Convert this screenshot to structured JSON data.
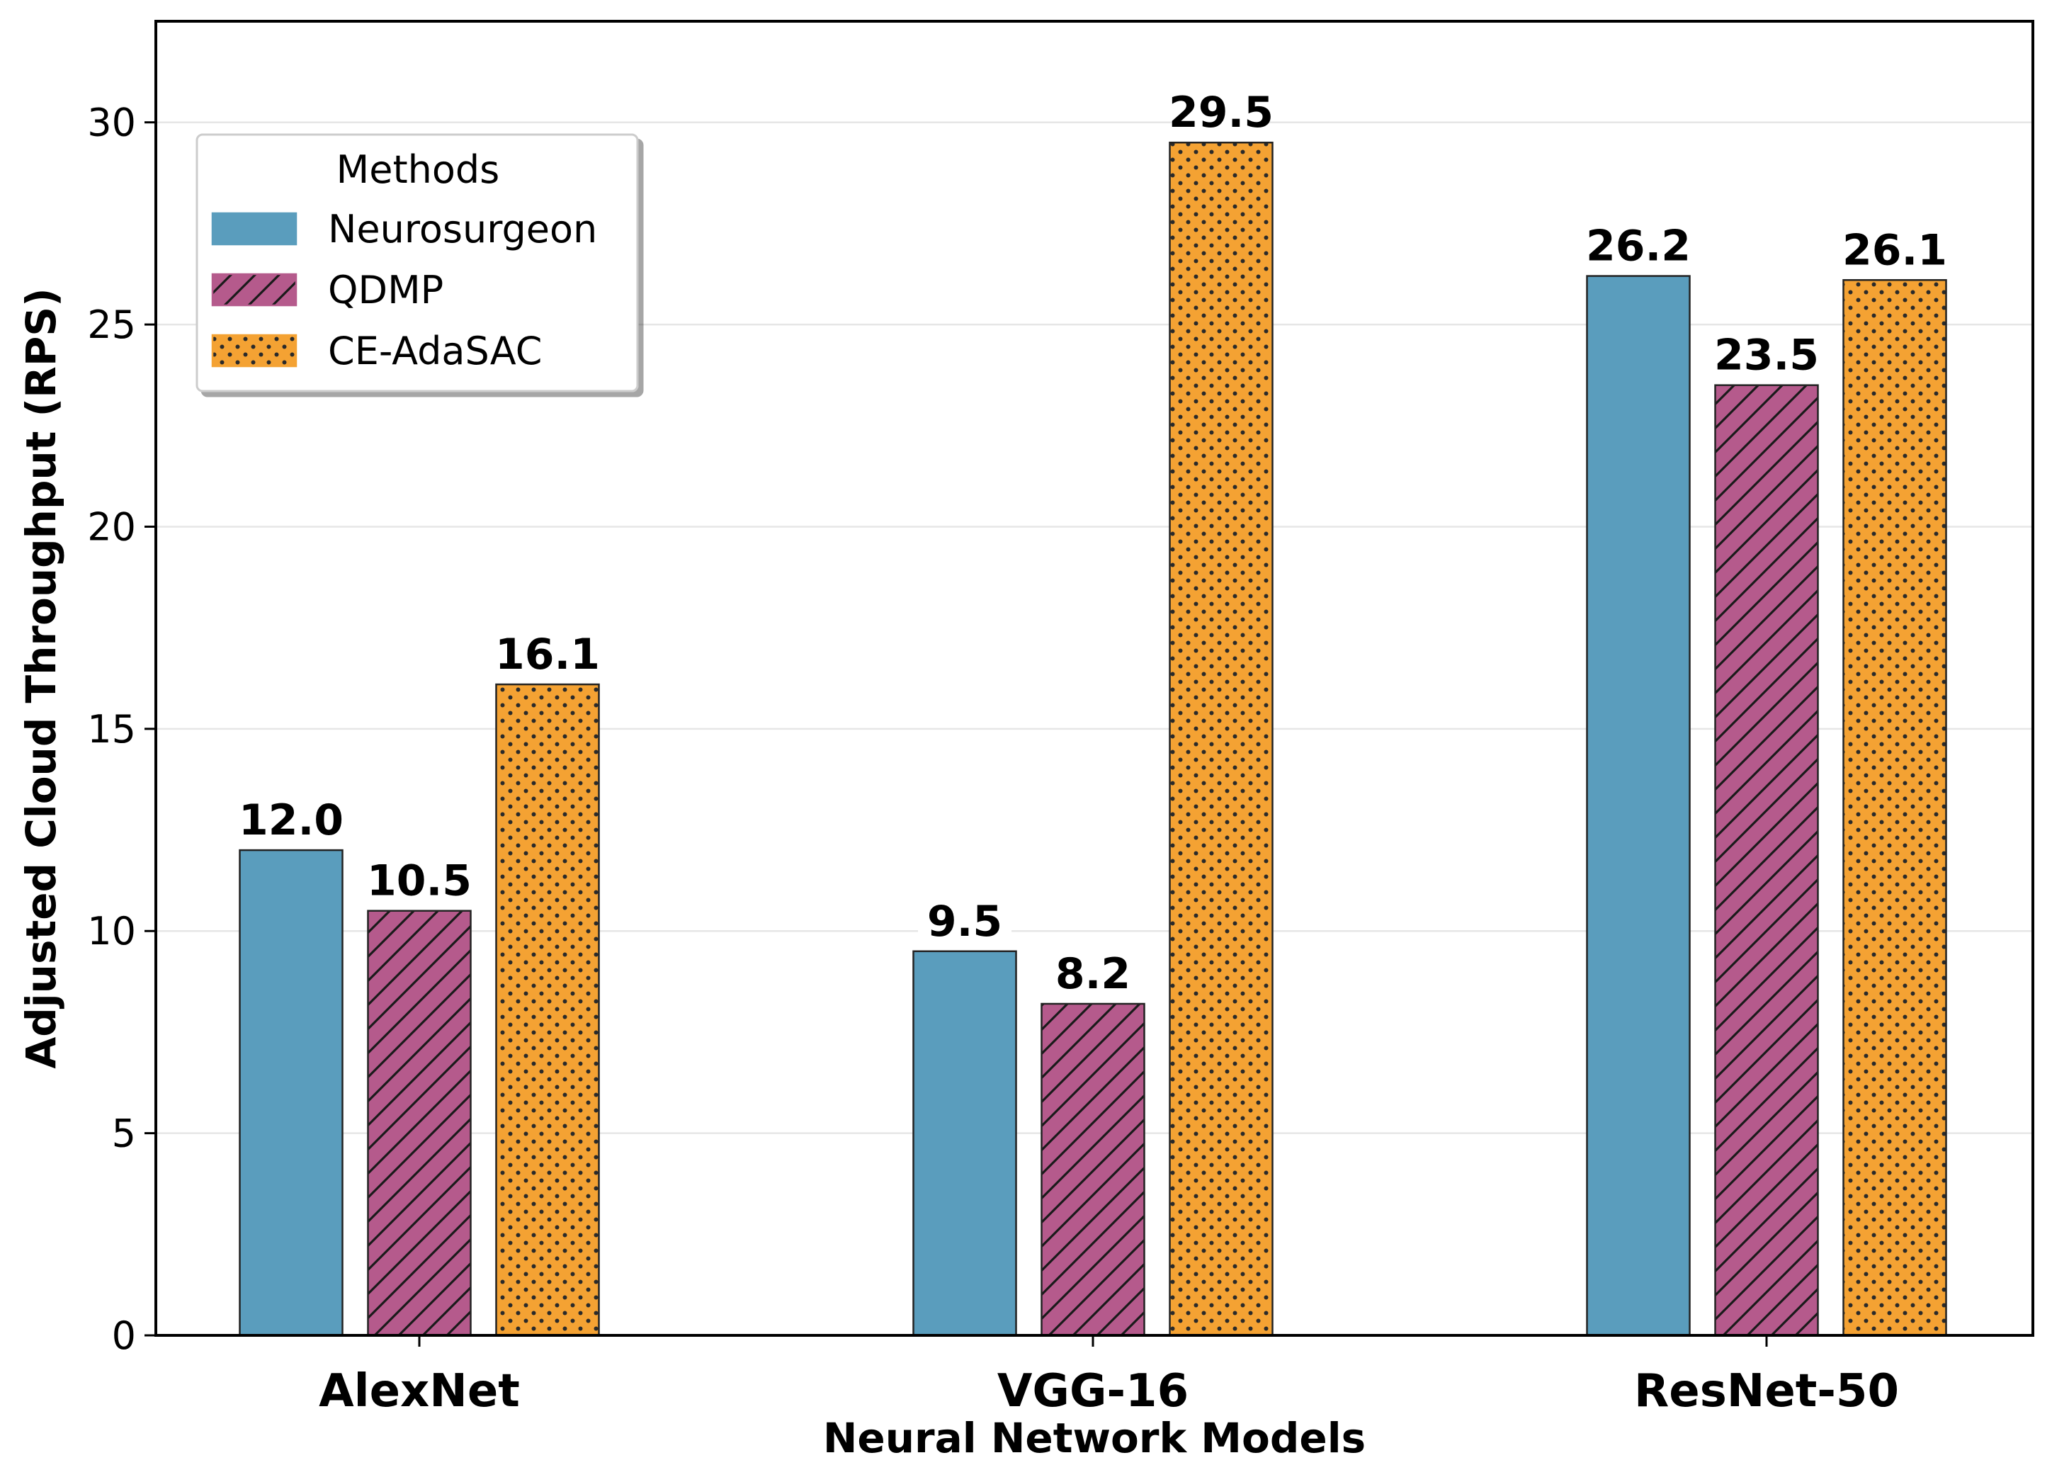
{
  "chart_data": {
    "type": "bar",
    "xlabel": "Neural Network Models",
    "ylabel": "Adjusted Cloud Throughput (RPS)",
    "categories": [
      "AlexNet",
      "VGG-16",
      "ResNet-50"
    ],
    "ylim": [
      0,
      32.5
    ],
    "yticks": [
      0,
      5,
      10,
      15,
      20,
      25,
      30
    ],
    "grid": true,
    "legend": {
      "title": "Methods",
      "position": "upper-left"
    },
    "series": [
      {
        "name": "Neurosurgeon",
        "values": [
          12.0,
          9.5,
          26.2
        ],
        "labels": [
          "12.0",
          "9.5",
          "26.2"
        ],
        "color": "#5a9dbd",
        "pattern": "solid"
      },
      {
        "name": "QDMP",
        "values": [
          10.5,
          8.2,
          23.5
        ],
        "labels": [
          "10.5",
          "8.2",
          "23.5"
        ],
        "color": "#b55a8c",
        "pattern": "diagonal-hatch"
      },
      {
        "name": "CE-AdaSAC",
        "values": [
          16.1,
          29.5,
          26.1
        ],
        "labels": [
          "16.1",
          "29.5",
          "26.1"
        ],
        "color": "#f4a233",
        "pattern": "dots"
      }
    ]
  }
}
